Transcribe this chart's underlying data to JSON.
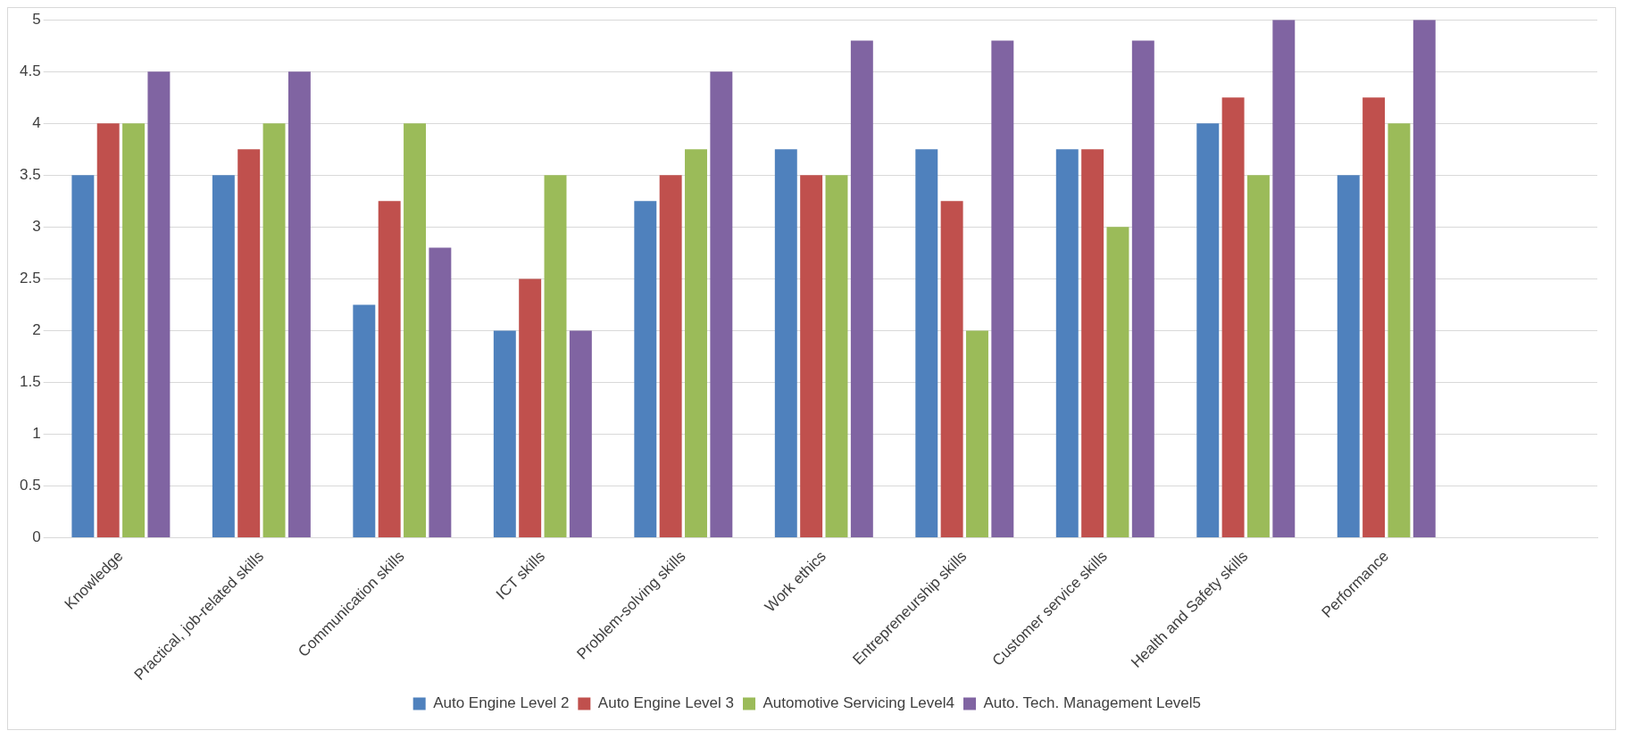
{
  "chart_data": {
    "type": "bar",
    "categories": [
      "Knowledge",
      "Practical, job-related skills",
      "Communication skills",
      "ICT skills",
      "Problem-solving skills",
      "Work ethics",
      "Entrepreneurship skills",
      "Customer service skills",
      "Health and Safety skills",
      "Performance",
      null
    ],
    "series": [
      {
        "name": "Auto Engine Level 2",
        "color": "#4f81bd",
        "values": [
          3.5,
          3.5,
          2.25,
          2,
          3.25,
          3.75,
          3.75,
          3.75,
          4,
          3.5,
          null
        ]
      },
      {
        "name": "Auto Engine Level 3",
        "color": "#c0504d",
        "values": [
          4,
          3.75,
          3.25,
          2.5,
          3.5,
          3.5,
          3.25,
          3.75,
          4.25,
          4.25,
          null
        ]
      },
      {
        "name": "Automotive Servicing Level4",
        "color": "#9bbb59",
        "values": [
          4,
          4,
          4,
          3.5,
          3.75,
          3.5,
          2,
          3,
          3.5,
          4,
          null
        ]
      },
      {
        "name": "Auto. Tech. Management Level5",
        "color": "#8064a2",
        "values": [
          4.5,
          4.5,
          2.8,
          2,
          4.5,
          4.8,
          4.8,
          4.8,
          5,
          5,
          null
        ]
      }
    ],
    "ylim": [
      0,
      5
    ],
    "yticks": [
      0,
      0.5,
      1,
      1.5,
      2,
      2.5,
      3,
      3.5,
      4,
      4.5,
      5
    ],
    "grid": "y",
    "legend": "bottom"
  }
}
